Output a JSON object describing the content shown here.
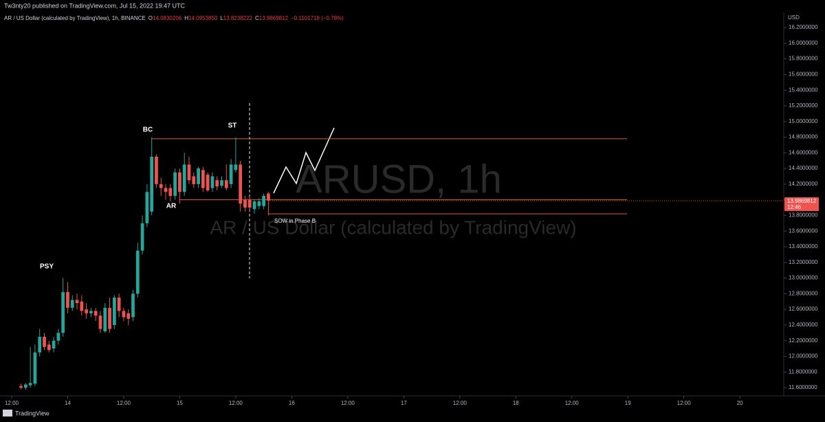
{
  "chart_data": {
    "type": "candlestick",
    "publisher": "Tw3nty20 published on TradingView.com, Jul 15, 2022 19:47 UTC",
    "symbol": "AR / US Dollar (calculated by TradingView), 1h, BINANCE",
    "ohlc": [
      {
        "label": "O",
        "value": "14.0830206"
      },
      {
        "label": "H",
        "value": "14.0953850"
      },
      {
        "label": "L",
        "value": "13.8238222"
      },
      {
        "label": "C",
        "value": "13.9869812"
      }
    ],
    "change": "−0.1101718 (−0.78%)",
    "watermark": "ARUSD, 1h",
    "watermark_sub": "AR / US Dollar (calculated by TradingView)",
    "currency": "USD",
    "brand": "TradingView",
    "last_price": 13.9869812,
    "countdown": "12:46",
    "annotations": [
      "PSY",
      "BC",
      "AR",
      "ST",
      "SOW in Phase B"
    ],
    "levels": [
      14.78,
      14.0,
      13.82
    ],
    "colors": {
      "up": "#26a69a",
      "down": "#ef5350",
      "level": "#e0602a"
    },
    "open": [
      11.62,
      11.6,
      11.63,
      11.65,
      12.05,
      12.25,
      12.15,
      12.1,
      12.2,
      12.3,
      12.82,
      12.62,
      12.72,
      12.7,
      12.6,
      12.55,
      12.58,
      12.52,
      12.32,
      12.62,
      12.4,
      12.75,
      12.58,
      12.55,
      12.5,
      12.8,
      13.35,
      13.7,
      13.85,
      14.55,
      14.2,
      14.15,
      14.15,
      14.05,
      14.35,
      14.1,
      14.45,
      14.3,
      14.2,
      14.38,
      14.32,
      14.15,
      14.25,
      14.18,
      14.25,
      14.2,
      14.38,
      14.45,
      14.0,
      14.0,
      13.88,
      13.92,
      13.92,
      14.08
    ],
    "high": [
      11.65,
      11.66,
      12.12,
      12.15,
      12.35,
      12.3,
      12.2,
      12.25,
      12.35,
      13.0,
      12.95,
      12.78,
      12.8,
      12.78,
      12.68,
      12.62,
      12.62,
      12.58,
      12.68,
      12.75,
      12.78,
      12.8,
      12.62,
      12.6,
      12.85,
      13.45,
      13.8,
      14.2,
      14.8,
      14.58,
      14.28,
      14.2,
      14.2,
      14.4,
      14.4,
      14.6,
      14.55,
      14.35,
      14.42,
      14.42,
      14.35,
      14.35,
      14.3,
      14.3,
      14.45,
      14.52,
      14.8,
      14.5,
      14.05,
      14.05,
      14.0,
      14.02,
      14.08,
      14.1
    ],
    "low": [
      11.58,
      11.57,
      11.6,
      11.62,
      12.0,
      12.08,
      12.05,
      12.05,
      12.15,
      12.25,
      12.55,
      12.58,
      12.6,
      12.52,
      12.48,
      12.5,
      12.45,
      12.3,
      12.3,
      12.3,
      12.35,
      12.5,
      12.45,
      12.4,
      12.45,
      12.75,
      13.3,
      13.65,
      13.8,
      14.15,
      14.05,
      14.0,
      13.98,
      14.0,
      13.95,
      14.05,
      14.2,
      14.15,
      14.15,
      14.1,
      14.1,
      14.1,
      14.12,
      14.15,
      14.12,
      14.15,
      14.35,
      13.85,
      13.85,
      13.85,
      13.82,
      13.88,
      13.88,
      13.8
    ],
    "close": [
      11.6,
      11.64,
      11.66,
      12.05,
      12.25,
      12.12,
      12.08,
      12.2,
      12.3,
      12.82,
      12.62,
      12.72,
      12.68,
      12.58,
      12.55,
      12.58,
      12.52,
      12.35,
      12.62,
      12.35,
      12.75,
      12.58,
      12.5,
      12.48,
      12.8,
      13.35,
      13.7,
      14.1,
      14.55,
      14.2,
      14.15,
      14.1,
      14.05,
      14.35,
      14.1,
      14.45,
      14.25,
      14.2,
      14.4,
      14.15,
      14.12,
      14.3,
      14.17,
      14.25,
      14.15,
      14.45,
      14.45,
      13.95,
      13.9,
      13.9,
      13.98,
      13.98,
      14.05,
      13.99
    ],
    "xlim": [
      -4.5,
      163.4
    ],
    "xticks": [
      {
        "value": -2,
        "label": "12:00"
      },
      {
        "value": 10,
        "label": "14"
      },
      {
        "value": 22,
        "label": "12:00"
      },
      {
        "value": 34,
        "label": "15"
      },
      {
        "value": 46,
        "label": "12:00"
      },
      {
        "value": 58,
        "label": "16"
      },
      {
        "value": 70,
        "label": "12:00"
      },
      {
        "value": 82,
        "label": "17"
      },
      {
        "value": 94,
        "label": "12:00"
      },
      {
        "value": 106,
        "label": "18"
      },
      {
        "value": 118,
        "label": "12:00"
      },
      {
        "value": 130,
        "label": "19"
      },
      {
        "value": 142,
        "label": "12:00"
      },
      {
        "value": 154,
        "label": "20"
      }
    ],
    "ylim": [
      11.5,
      16.4
    ],
    "yticks": [
      {
        "value": 11.6,
        "label": "11.6000000"
      },
      {
        "value": 11.8,
        "label": "11.8000000"
      },
      {
        "value": 12.0,
        "label": "12.0000000"
      },
      {
        "value": 12.2,
        "label": "12.2000000"
      },
      {
        "value": 12.4,
        "label": "12.4000000"
      },
      {
        "value": 12.6,
        "label": "12.6000000"
      },
      {
        "value": 12.8,
        "label": "12.8000000"
      },
      {
        "value": 13.0,
        "label": "13.0000000"
      },
      {
        "value": 13.2,
        "label": "13.2000000"
      },
      {
        "value": 13.4,
        "label": "13.4000000"
      },
      {
        "value": 13.6,
        "label": "13.6000000"
      },
      {
        "value": 13.8,
        "label": "13.8000000"
      },
      {
        "value": 14.0,
        "label": "14.0000000"
      },
      {
        "value": 14.2,
        "label": "14.2000000"
      },
      {
        "value": 14.4,
        "label": "14.4000000"
      },
      {
        "value": 14.6,
        "label": "14.6000000"
      },
      {
        "value": 14.8,
        "label": "14.8000000"
      },
      {
        "value": 15.0,
        "label": "15.0000000"
      },
      {
        "value": 15.2,
        "label": "15.2000000"
      },
      {
        "value": 15.4,
        "label": "15.4000000"
      },
      {
        "value": 15.6,
        "label": "15.6000000"
      },
      {
        "value": 15.8,
        "label": "15.8000000"
      },
      {
        "value": 16.0,
        "label": "16.0000000"
      },
      {
        "value": 16.2,
        "label": "16.2000000"
      }
    ]
  }
}
